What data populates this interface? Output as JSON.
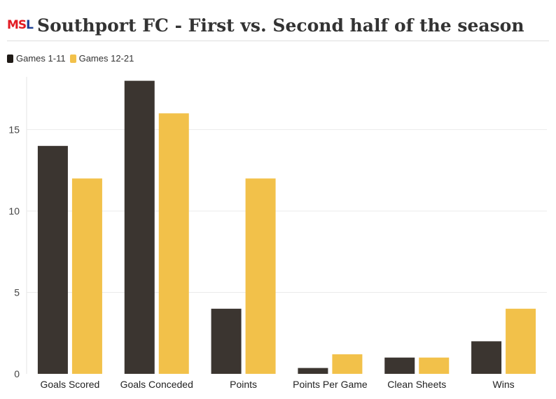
{
  "header": {
    "logo_part1": "M",
    "logo_part2": "S",
    "logo_part3": "L",
    "title": "Southport FC - First vs. Second half of the season"
  },
  "colors": {
    "logo_red": "#e21b23",
    "logo_blue": "#1c3f94"
  },
  "chart_data": {
    "type": "bar",
    "title": "Southport FC - First vs. Second half of the season",
    "xlabel": "",
    "ylabel": "",
    "categories": [
      "Goals Scored",
      "Goals Conceded",
      "Points",
      "Points Per Game",
      "Clean Sheets",
      "Wins"
    ],
    "series": [
      {
        "name": "Games 1-11",
        "color": "#3b3530",
        "values": [
          14,
          18,
          4,
          0.36,
          1,
          2
        ]
      },
      {
        "name": "Games 12-21",
        "color": "#f2c14a",
        "values": [
          12,
          16,
          12,
          1.2,
          1,
          4
        ]
      }
    ],
    "ylim": [
      0,
      18
    ],
    "yticks": [
      0,
      5,
      10,
      15
    ],
    "grid": true,
    "legend": "top-left"
  }
}
